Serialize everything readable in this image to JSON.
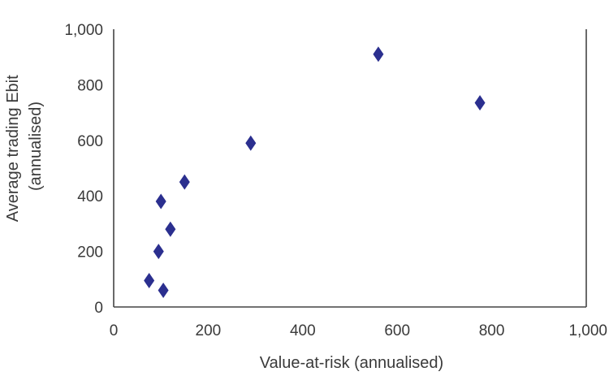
{
  "chart_data": {
    "type": "scatter",
    "title": "",
    "xlabel": "Value-at-risk (annualised)",
    "ylabel_lines": [
      "Average trading Ebit",
      "(annualised)"
    ],
    "xlim": [
      0,
      1000
    ],
    "ylim": [
      0,
      1000
    ],
    "x_ticks": [
      0,
      200,
      400,
      600,
      800,
      1000
    ],
    "x_tick_labels": [
      "0",
      "200",
      "400",
      "600",
      "800",
      "1,000"
    ],
    "y_ticks": [
      0,
      200,
      400,
      600,
      800,
      1000
    ],
    "y_tick_labels": [
      "0",
      "200",
      "400",
      "600",
      "800",
      "1,000"
    ],
    "grid": false,
    "legend": "none",
    "marker": "diamond",
    "marker_color": "#2b2f8f",
    "axis_color": "#444444",
    "points": [
      {
        "x": 75,
        "y": 95
      },
      {
        "x": 105,
        "y": 60
      },
      {
        "x": 95,
        "y": 200
      },
      {
        "x": 120,
        "y": 280
      },
      {
        "x": 100,
        "y": 380
      },
      {
        "x": 150,
        "y": 450
      },
      {
        "x": 290,
        "y": 590
      },
      {
        "x": 560,
        "y": 910
      },
      {
        "x": 775,
        "y": 735
      }
    ]
  }
}
